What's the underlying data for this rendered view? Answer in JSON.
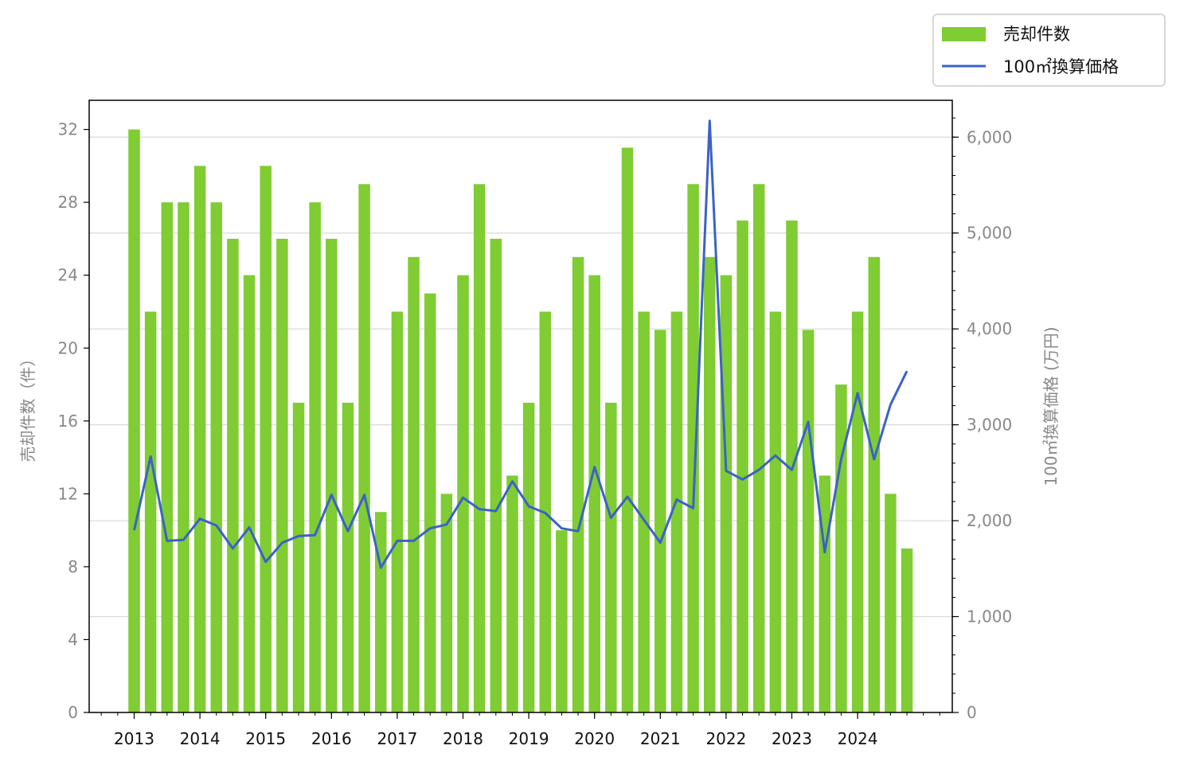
{
  "chart_data": {
    "type": "bar+line",
    "x_tick_labels": [
      "2013",
      "2014",
      "2015",
      "2016",
      "2017",
      "2018",
      "2019",
      "2020",
      "2021",
      "2022",
      "2023",
      "2024"
    ],
    "periods": [
      "2013-Q1",
      "2013-Q2",
      "2013-Q3",
      "2013-Q4",
      "2014-Q1",
      "2014-Q2",
      "2014-Q3",
      "2014-Q4",
      "2015-Q1",
      "2015-Q2",
      "2015-Q3",
      "2015-Q4",
      "2016-Q1",
      "2016-Q2",
      "2016-Q3",
      "2016-Q4",
      "2017-Q1",
      "2017-Q2",
      "2017-Q3",
      "2017-Q4",
      "2018-Q1",
      "2018-Q2",
      "2018-Q3",
      "2018-Q4",
      "2019-Q1",
      "2019-Q2",
      "2019-Q3",
      "2019-Q4",
      "2020-Q1",
      "2020-Q2",
      "2020-Q3",
      "2020-Q4",
      "2021-Q1",
      "2021-Q2",
      "2021-Q3",
      "2021-Q4",
      "2022-Q1",
      "2022-Q2",
      "2022-Q3",
      "2022-Q4",
      "2023-Q1",
      "2023-Q2",
      "2023-Q3",
      "2023-Q4",
      "2024-Q1",
      "2024-Q2",
      "2024-Q3",
      "2024-Q4"
    ],
    "series": [
      {
        "name": "売却件数",
        "type": "bar",
        "axis": "left",
        "color": "#7fcc33",
        "values": [
          32,
          22,
          28,
          28,
          30,
          28,
          26,
          24,
          30,
          26,
          17,
          28,
          26,
          17,
          29,
          11,
          22,
          25,
          23,
          12,
          24,
          29,
          26,
          13,
          17,
          22,
          10,
          25,
          24,
          17,
          31,
          22,
          21,
          22,
          29,
          25,
          24,
          27,
          29,
          22,
          27,
          21,
          13,
          18,
          22,
          25,
          12,
          9
        ]
      },
      {
        "name": "100㎡換算価格",
        "type": "line",
        "axis": "right",
        "color": "#3a62c8",
        "values": [
          1900,
          2670,
          1790,
          1800,
          2020,
          1950,
          1710,
          1930,
          1570,
          1770,
          1840,
          1850,
          2270,
          1890,
          2270,
          1510,
          1790,
          1790,
          1920,
          1960,
          2240,
          2120,
          2100,
          2410,
          2150,
          2080,
          1920,
          1890,
          2560,
          2030,
          2250,
          2010,
          1770,
          2220,
          2130,
          6170,
          2520,
          2430,
          2530,
          2680,
          2530,
          3030,
          1670,
          2640,
          3330,
          2640,
          3210,
          3560
        ]
      }
    ],
    "y_left": {
      "label": "売却件数（件）",
      "range": [
        0,
        33.6
      ],
      "ticks": [
        0,
        4,
        8,
        12,
        16,
        20,
        24,
        28,
        32
      ]
    },
    "y_right": {
      "label": "100㎡換算価格 (万円)",
      "range": [
        0,
        6384
      ],
      "ticks": [
        0,
        1000,
        2000,
        3000,
        4000,
        5000,
        6000
      ],
      "tick_labels": [
        "0",
        "1,000",
        "2,000",
        "3,000",
        "4,000",
        "5,000",
        "6,000"
      ]
    },
    "grid": true,
    "legend_placement": "top-right, outside plot"
  }
}
